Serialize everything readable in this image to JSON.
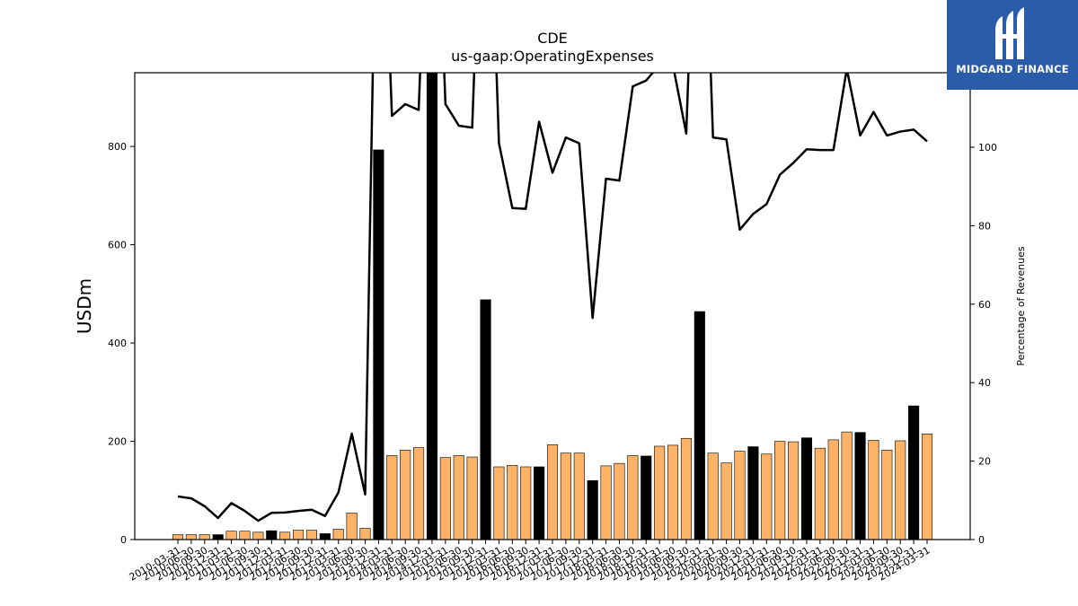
{
  "chart_data": {
    "type": "bar",
    "title": "CDE",
    "subtitle": "us-gaap:OperatingExpenses",
    "ylabel": "USDm",
    "y2label": "Percentage of Revenues",
    "ylim": [
      0,
      950
    ],
    "y2lim": [
      0,
      119
    ],
    "yticks": [
      0,
      200,
      400,
      600,
      800
    ],
    "y2ticks": [
      0,
      20,
      40,
      60,
      80,
      100
    ],
    "categories": [
      "2010-03-31",
      "2010-06-30",
      "2010-09-30",
      "2010-12-31",
      "2011-03-31",
      "2011-06-30",
      "2011-09-30",
      "2011-12-31",
      "2012-03-31",
      "2012-06-30",
      "2012-09-30",
      "2012-12-31",
      "2013-03-31",
      "2013-06-30",
      "2013-09-30",
      "2013-12-31",
      "2014-03-31",
      "2014-06-30",
      "2014-09-30",
      "2014-12-31",
      "2015-03-31",
      "2015-06-30",
      "2015-09-30",
      "2015-12-31",
      "2016-03-31",
      "2016-06-30",
      "2016-09-30",
      "2016-12-31",
      "2017-03-31",
      "2017-06-30",
      "2017-09-30",
      "2017-12-31",
      "2018-03-31",
      "2018-06-30",
      "2018-09-30",
      "2018-12-31",
      "2019-03-31",
      "2019-06-30",
      "2019-09-30",
      "2019-12-31",
      "2020-03-31",
      "2020-06-30",
      "2020-09-30",
      "2020-12-31",
      "2021-03-31",
      "2021-06-30",
      "2021-09-30",
      "2021-12-31",
      "2022-03-31",
      "2022-06-30",
      "2022-09-30",
      "2022-12-31",
      "2023-03-31",
      "2023-06-30",
      "2023-09-30",
      "2023-12-31",
      "2024-03-31"
    ],
    "series": [
      {
        "values": [
          10,
          10,
          10,
          10,
          17,
          17,
          15,
          18,
          15,
          19,
          19,
          12,
          21,
          54,
          23,
          793,
          171,
          182,
          187,
          960,
          167,
          171,
          168,
          488,
          148,
          151,
          148,
          148,
          193,
          176,
          176,
          120,
          150,
          155,
          171,
          170,
          190,
          192,
          206,
          464,
          176,
          156,
          180,
          189,
          174,
          200,
          199,
          207,
          186,
          203,
          219,
          218,
          202,
          182,
          201,
          272,
          215
        ],
        "kind": "bar",
        "colors": [
          "orange",
          "orange",
          "orange",
          "black",
          "orange",
          "orange",
          "orange",
          "black",
          "orange",
          "orange",
          "orange",
          "black",
          "orange",
          "orange",
          "orange",
          "black",
          "orange",
          "orange",
          "orange",
          "black",
          "orange",
          "orange",
          "orange",
          "black",
          "orange",
          "orange",
          "orange",
          "black",
          "orange",
          "orange",
          "orange",
          "black",
          "orange",
          "orange",
          "orange",
          "black",
          "orange",
          "orange",
          "orange",
          "black",
          "orange",
          "orange",
          "orange",
          "black",
          "orange",
          "orange",
          "orange",
          "black",
          "orange",
          "orange",
          "orange",
          "black",
          "orange",
          "orange",
          "orange",
          "black",
          "orange"
        ]
      },
      {
        "values": [
          11,
          10.5,
          8.5,
          5.5,
          9.3,
          7.3,
          4.8,
          6.8,
          6.9,
          7.3,
          7.6,
          6,
          12,
          27,
          11.5,
          200,
          108,
          111,
          109.5,
          200,
          111,
          105.5,
          105,
          200,
          101,
          84.5,
          84.3,
          106.5,
          93.5,
          102.5,
          101,
          56.5,
          92,
          91.5,
          115.5,
          117,
          121,
          121,
          103.5,
          200,
          102.5,
          102,
          79,
          83,
          85.5,
          93,
          96,
          99.5,
          99.3,
          99.3,
          120,
          103,
          109,
          103,
          104,
          104.5,
          101.5
        ],
        "kind": "line",
        "axis": "right"
      }
    ]
  },
  "colors": {
    "bar_primary": "#fdb367",
    "bar_highlight": "#000000",
    "line": "#000000"
  },
  "logo": {
    "text": "MIDGARD FINANCE"
  }
}
